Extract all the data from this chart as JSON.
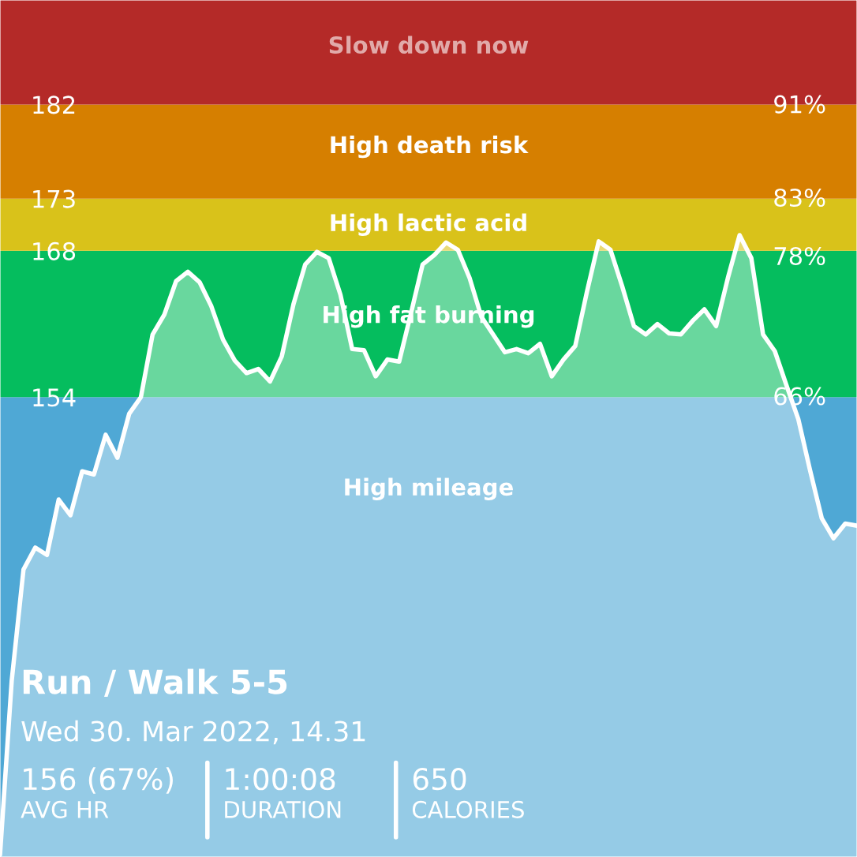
{
  "chart_data": {
    "type": "area",
    "title": "Run / Walk 5-5",
    "subtitle": "Wed 30. Mar 2022, 14.31",
    "annotations": [
      "156 (67%)",
      "AVG HR",
      "1:00:08",
      "DURATION",
      "650",
      "CALORIES"
    ],
    "categories": [
      null,
      null,
      null,
      null,
      null,
      null,
      null,
      null,
      null,
      null,
      null,
      null,
      null,
      null,
      null,
      null,
      null,
      null,
      null,
      null,
      null,
      null,
      null,
      null,
      null,
      null,
      null,
      null,
      null,
      null,
      null,
      null,
      null,
      null,
      null,
      null,
      null,
      null,
      null,
      null,
      null,
      null,
      null,
      null,
      null,
      null,
      null,
      null,
      null,
      null,
      null,
      null,
      null,
      null,
      null,
      null,
      null,
      null,
      null,
      null,
      null,
      null,
      null,
      null,
      null,
      null,
      null,
      null,
      null,
      null,
      null,
      null,
      null,
      null
    ],
    "series": [
      {
        "color": "#ffffff",
        "values": [
          110.2,
          126.9,
          137.5,
          139.6,
          138.9,
          144.2,
          142.7,
          146.9,
          146.6,
          150.4,
          148.2,
          152.4,
          154.0,
          160.0,
          161.9,
          165.1,
          166.0,
          165.0,
          162.7,
          159.5,
          157.5,
          156.3,
          156.7,
          155.5,
          157.9,
          162.9,
          166.7,
          167.9,
          167.3,
          163.8,
          158.6,
          158.5,
          156.0,
          157.6,
          157.4,
          162.0,
          166.7,
          167.6,
          168.8,
          168.1,
          165.4,
          161.7,
          160.0,
          158.3,
          158.6,
          158.2,
          159.1,
          156.0,
          157.6,
          158.9,
          164.1,
          168.9,
          168.1,
          164.6,
          160.8,
          160.0,
          161.0,
          160.1,
          160.0,
          161.3,
          162.4,
          160.8,
          165.4,
          169.5,
          167.3,
          160.0,
          158.4,
          155.1,
          151.9,
          147.0,
          142.4,
          140.5,
          141.9,
          141.7
        ]
      }
    ],
    "ylim": [
      110,
      192
    ],
    "yticks": [
      154,
      168,
      173,
      182
    ],
    "y2lim": [
      26.5,
      99.9
    ],
    "y2ticks": [
      {
        "value": 66,
        "label": "66%"
      },
      {
        "value": 78,
        "label": "78%"
      },
      {
        "value": 83,
        "label": "83%"
      },
      {
        "value": 91,
        "label": "91%"
      }
    ],
    "bands": [
      {
        "axis": "y",
        "from": 110,
        "to": 154,
        "label": "High mileage",
        "color": "#4fa8d5"
      },
      {
        "axis": "y",
        "from": 154,
        "to": 168,
        "label": "High fat burning",
        "color": "#05bd5e"
      },
      {
        "axis": "y",
        "from": 168,
        "to": 173,
        "label": "High lactic acid",
        "color": "#d9c21a"
      },
      {
        "axis": "y",
        "from": 173,
        "to": 182,
        "label": "High death risk",
        "color": "#d67f00"
      },
      {
        "axis": "y",
        "from": 182,
        "to": 192,
        "label": "Slow down now",
        "color": "#b42a28"
      }
    ],
    "grid": false,
    "legend": false,
    "marker": "none",
    "line_style": "solid"
  }
}
